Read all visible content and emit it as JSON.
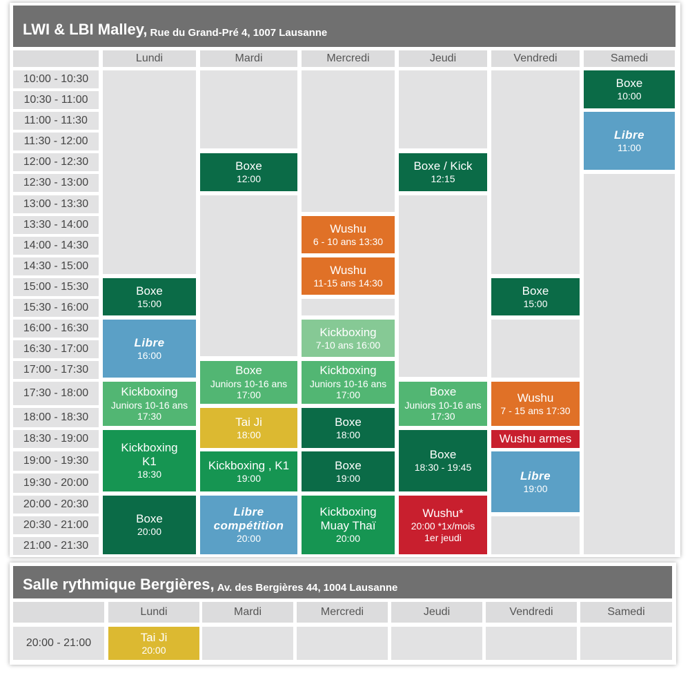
{
  "colors": {
    "dark_green": "#0b6b47",
    "green": "#169552",
    "light_green": "#52b673",
    "pale_green": "#86c995",
    "blue": "#5ba0c6",
    "orange": "#e07127",
    "yellow": "#dcb931",
    "red": "#c81f2e",
    "header_gray": "#707070"
  },
  "venue1": {
    "name": "LWI  & LBI Malley,",
    "address": "Rue du Grand-Pré 4, 1007 Lausanne",
    "days": [
      "Lundi",
      "Mardi",
      "Mercredi",
      "Jeudi",
      "Vendredi",
      "Samedi"
    ],
    "slots": [
      "10:00 - 10:30",
      "10:30 - 11:00",
      "11:00 - 11:30",
      "11:30 - 12:00",
      "12:00 - 12:30",
      "12:30 - 13:00",
      "13:00 - 13:30",
      "13:30 - 14:00",
      "14:00 - 14:30",
      "14:30 - 15:00",
      "15:00 - 15:30",
      "15:30 - 16:00",
      "16:00 - 16:30",
      "16:30 - 17:00",
      "17:00 - 17:30",
      "17:30 - 18:00",
      "18:00 - 18:30",
      "18:30 - 19:00",
      "19:00 - 19:30",
      "19:30 - 20:00",
      "20:00 - 20:30",
      "20:30 - 21:00",
      "21:00 - 21:30"
    ],
    "events": [
      {
        "day": "Lundi",
        "title": "Boxe",
        "sub": "15:00",
        "color": "dark_green"
      },
      {
        "day": "Lundi",
        "title": "Libre",
        "sub": "16:00",
        "color": "blue"
      },
      {
        "day": "Lundi",
        "title": "Kickboxing",
        "sub": "Juniors 10-16 ans",
        "sub2": "17:30",
        "color": "light_green"
      },
      {
        "day": "Lundi",
        "title": "Kickboxing",
        "title2": "K1",
        "sub": "18:30",
        "color": "green"
      },
      {
        "day": "Lundi",
        "title": "Boxe",
        "sub": "20:00",
        "color": "dark_green"
      },
      {
        "day": "Mardi",
        "title": "Boxe",
        "sub": "12:00",
        "color": "dark_green"
      },
      {
        "day": "Mardi",
        "title": "Boxe",
        "sub": "Juniors 10-16 ans",
        "sub2": "17:00",
        "color": "light_green"
      },
      {
        "day": "Mardi",
        "title": "Tai Ji",
        "sub": "18:00",
        "color": "yellow"
      },
      {
        "day": "Mardi",
        "title": "Kickboxing , K1",
        "sub": "19:00",
        "color": "green"
      },
      {
        "day": "Mardi",
        "title": "Libre",
        "title2": "compétition",
        "sub": "20:00",
        "color": "blue"
      },
      {
        "day": "Mercredi",
        "title": "Wushu",
        "sub": "6 - 10 ans 13:30",
        "color": "orange"
      },
      {
        "day": "Mercredi",
        "title": "Wushu",
        "sub": "11-15 ans 14:30",
        "color": "orange"
      },
      {
        "day": "Mercredi",
        "title": "Kickboxing",
        "sub": "7-10 ans  16:00",
        "color": "pale_green"
      },
      {
        "day": "Mercredi",
        "title": "Kickboxing",
        "sub": "Juniors 10-16 ans",
        "sub2": "17:00",
        "color": "light_green"
      },
      {
        "day": "Mercredi",
        "title": "Boxe",
        "sub": "18:00",
        "color": "dark_green"
      },
      {
        "day": "Mercredi",
        "title": "Boxe",
        "sub": "19:00",
        "color": "dark_green"
      },
      {
        "day": "Mercredi",
        "title": "Kickboxing",
        "title2": "Muay Thaï",
        "sub": "20:00",
        "color": "green"
      },
      {
        "day": "Jeudi",
        "title": "Boxe / Kick",
        "sub": "12:15",
        "color": "dark_green"
      },
      {
        "day": "Jeudi",
        "title": "Boxe",
        "sub": "Juniors 10-16 ans",
        "sub2": "17:30",
        "color": "light_green"
      },
      {
        "day": "Jeudi",
        "title": "Boxe",
        "sub": "18:30 - 19:45",
        "color": "dark_green"
      },
      {
        "day": "Jeudi",
        "title": "Wushu*",
        "sub": "20:00 *1x/mois",
        "sub2": "1er jeudi",
        "color": "red"
      },
      {
        "day": "Vendredi",
        "title": "Boxe",
        "sub": "15:00",
        "color": "dark_green"
      },
      {
        "day": "Vendredi",
        "title": "Wushu",
        "sub": "7 - 15 ans 17:30",
        "color": "orange"
      },
      {
        "day": "Vendredi",
        "title": "Wushu armes",
        "color": "red"
      },
      {
        "day": "Vendredi",
        "title": "Libre",
        "sub": "19:00",
        "color": "blue"
      },
      {
        "day": "Samedi",
        "title": "Boxe",
        "sub": "10:00",
        "color": "dark_green"
      },
      {
        "day": "Samedi",
        "title": "Libre",
        "sub": "11:00",
        "color": "blue"
      }
    ]
  },
  "venue2": {
    "name": "Salle rythmique Bergières,",
    "address": "Av. des Bergières 44, 1004 Lausanne",
    "days": [
      "Lundi",
      "Mardi",
      "Mercredi",
      "Jeudi",
      "Vendredi",
      "Samedi"
    ],
    "slot": "20:00 - 21:00",
    "event": {
      "day": "Lundi",
      "title": "Tai Ji",
      "sub": "20:00",
      "color": "yellow"
    }
  }
}
